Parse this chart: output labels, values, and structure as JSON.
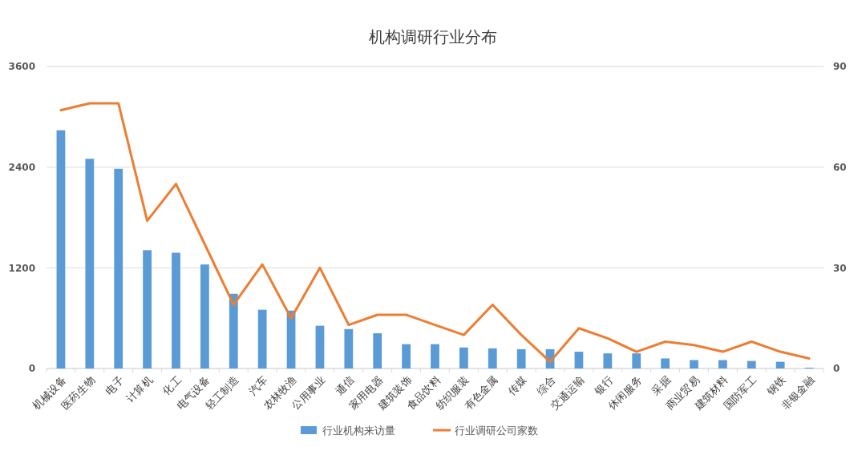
{
  "chart_data": {
    "type": "bar",
    "title": "机构调研行业分布",
    "categories": [
      "机械设备",
      "医药生物",
      "电子",
      "计算机",
      "化工",
      "电气设备",
      "轻工制造",
      "汽车",
      "农林牧渔",
      "公用事业",
      "通信",
      "家用电器",
      "建筑装饰",
      "食品饮料",
      "纺织服装",
      "有色金属",
      "传媒",
      "综合",
      "交通运输",
      "银行",
      "休闲服务",
      "采掘",
      "商业贸易",
      "建筑材料",
      "国防军工",
      "钢铁",
      "非银金融"
    ],
    "series": [
      {
        "name": "行业机构来访量",
        "color": "#5b9bd5",
        "values": [
          2840,
          2500,
          2380,
          1410,
          1380,
          1240,
          890,
          700,
          690,
          510,
          470,
          420,
          290,
          290,
          250,
          240,
          230,
          230,
          200,
          180,
          180,
          120,
          100,
          100,
          90,
          80,
          10
        ]
      },
      {
        "name": "行业调研公司家数",
        "type": "line",
        "axis": "y2",
        "color": "#ed7d31",
        "values": [
          77,
          79,
          79,
          44,
          55,
          37,
          19,
          31,
          15,
          30,
          13,
          16,
          16,
          13,
          10,
          19,
          10,
          2,
          12,
          9,
          5,
          8,
          7,
          5,
          8,
          5,
          3
        ]
      }
    ],
    "ylim": [
      0,
      3600
    ],
    "yticks": [
      0,
      1200,
      2400,
      3600
    ],
    "y2lim": [
      0,
      90
    ],
    "y2ticks": [
      0,
      30,
      60,
      90
    ],
    "grid": "y",
    "legend": "bottom",
    "marker": "none",
    "line_style": "solid"
  }
}
